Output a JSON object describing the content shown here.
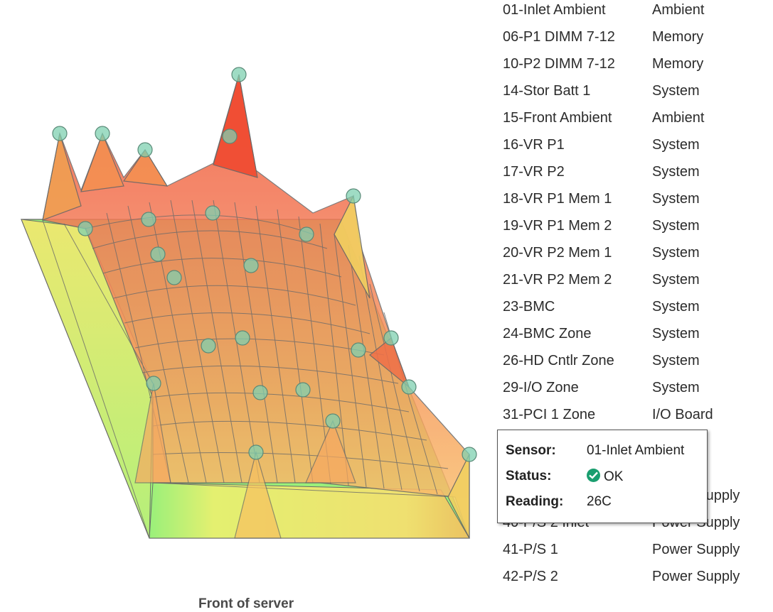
{
  "caption": "Front of server",
  "sensors": [
    {
      "name": "01-Inlet Ambient",
      "location": "Ambient",
      "reading_edge": ""
    },
    {
      "name": "06-P1 DIMM 7-12",
      "location": "Memory",
      "reading_edge": ""
    },
    {
      "name": "10-P2 DIMM 7-12",
      "location": "Memory",
      "reading_edge": ""
    },
    {
      "name": "14-Stor Batt 1",
      "location": "System",
      "reading_edge": ""
    },
    {
      "name": "15-Front Ambient",
      "location": "Ambient",
      "reading_edge": ""
    },
    {
      "name": "16-VR P1",
      "location": "System",
      "reading_edge": ""
    },
    {
      "name": "17-VR P2",
      "location": "System",
      "reading_edge": ""
    },
    {
      "name": "18-VR P1 Mem 1",
      "location": "System",
      "reading_edge": ""
    },
    {
      "name": "19-VR P1 Mem 2",
      "location": "System",
      "reading_edge": ""
    },
    {
      "name": "20-VR P2 Mem 1",
      "location": "System",
      "reading_edge": ""
    },
    {
      "name": "21-VR P2 Mem 2",
      "location": "System",
      "reading_edge": ""
    },
    {
      "name": "23-BMC",
      "location": "System",
      "reading_edge": ""
    },
    {
      "name": "24-BMC Zone",
      "location": "System",
      "reading_edge": ""
    },
    {
      "name": "26-HD Cntlr Zone",
      "location": "System",
      "reading_edge": ""
    },
    {
      "name": "29-I/O Zone",
      "location": "System",
      "reading_edge": ""
    },
    {
      "name": "31-PCI 1 Zone",
      "location": "I/O Board",
      "reading_edge": ""
    },
    {
      "name": "",
      "location": "",
      "reading_edge": ""
    },
    {
      "name": "",
      "location": "",
      "reading_edge": ""
    },
    {
      "name": "",
      "location": "Power Supply",
      "reading_edge": ""
    },
    {
      "name": "40-P/S 2 Inlet",
      "location": "Power Supply",
      "reading_edge": ""
    },
    {
      "name": "41-P/S 1",
      "location": "Power Supply",
      "reading_edge": ""
    },
    {
      "name": "42-P/S 2",
      "location": "Power Supply",
      "reading_edge": ""
    }
  ],
  "tooltip": {
    "sensor_label": "Sensor:",
    "sensor_value": "01-Inlet Ambient",
    "status_label": "Status:",
    "status_value": "OK",
    "reading_label": "Reading:",
    "reading_value": "26C",
    "status_icon": "check-circle-icon",
    "status_color": "#1a9e6f"
  },
  "colors": {
    "hot": "#f05a3c",
    "warm": "#f8b060",
    "cool": "#f4f070",
    "cold": "#8ee870",
    "marker": "#7fd0b0"
  }
}
